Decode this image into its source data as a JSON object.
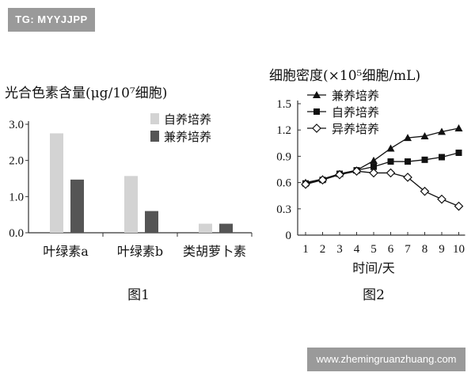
{
  "watermarks": {
    "top": "TG: MYYJJPP",
    "bottom": "www.zhemingruanzhuang.com"
  },
  "chart_data": [
    {
      "type": "bar",
      "title": "光合色素含量(μg/10⁷细胞)",
      "caption": "图1",
      "categories": [
        "叶绿素a",
        "叶绿素b",
        "类胡萝卜素"
      ],
      "series": [
        {
          "name": "自养培养",
          "color": "#d3d3d3",
          "values": [
            2.75,
            1.57,
            0.25
          ]
        },
        {
          "name": "兼养培养",
          "color": "#555555",
          "values": [
            1.47,
            0.6,
            0.25
          ]
        }
      ],
      "yticks": [
        "0.0",
        "1.0",
        "2.0",
        "3.0"
      ],
      "ylim": [
        0,
        3.0
      ],
      "legend": "top-right"
    },
    {
      "type": "line",
      "title": "细胞密度(×10⁵细胞/mL)",
      "caption": "图2",
      "xlabel": "时间/天",
      "x": [
        1,
        2,
        3,
        4,
        5,
        6,
        7,
        8,
        9,
        10
      ],
      "xticks": [
        "1",
        "2",
        "3",
        "4",
        "5",
        "6",
        "7",
        "8",
        "9",
        "10"
      ],
      "yticks": [
        "0",
        "0.3",
        "0.6",
        "0.9",
        "1.2",
        "1.5"
      ],
      "ylim": [
        0,
        1.5
      ],
      "legend": "top-left",
      "series": [
        {
          "name": "兼养培养",
          "marker": "triangle",
          "values": [
            0.6,
            0.64,
            0.7,
            0.74,
            0.85,
            0.99,
            1.11,
            1.13,
            1.18,
            1.22
          ]
        },
        {
          "name": "自养培养",
          "marker": "square",
          "values": [
            0.59,
            0.63,
            0.7,
            0.74,
            0.78,
            0.84,
            0.84,
            0.86,
            0.89,
            0.94
          ]
        },
        {
          "name": "异养培养",
          "marker": "diamond",
          "values": [
            0.58,
            0.63,
            0.69,
            0.73,
            0.71,
            0.71,
            0.66,
            0.5,
            0.41,
            0.33
          ]
        }
      ]
    }
  ]
}
